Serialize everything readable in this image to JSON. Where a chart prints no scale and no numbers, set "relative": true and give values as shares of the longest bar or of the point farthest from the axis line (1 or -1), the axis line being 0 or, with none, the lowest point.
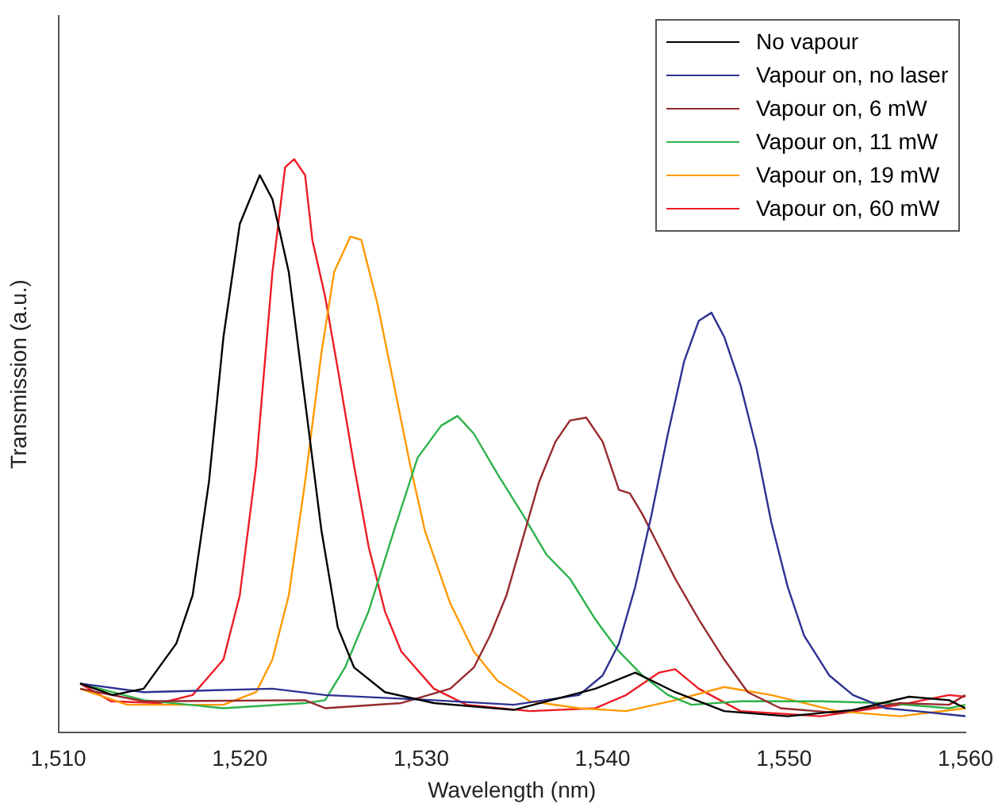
{
  "chart_data": {
    "type": "line",
    "xlabel": "Wavelength (nm)",
    "ylabel": "Transmission (a.u.)",
    "relative": true,
    "xlim": [
      1510,
      1560
    ],
    "xticks": [
      {
        "value": 1510,
        "label": "1,510"
      },
      {
        "value": 1520,
        "label": "1,520"
      },
      {
        "value": 1530,
        "label": "1,530"
      },
      {
        "value": 1540,
        "label": "1,540"
      },
      {
        "value": 1550,
        "label": "1,550"
      },
      {
        "value": 1560,
        "label": "1,560"
      }
    ],
    "grid": false,
    "legend": "top right",
    "marker": "none",
    "line_style": "solid",
    "series": [
      {
        "name": "No vapour",
        "color": "#000000",
        "x": [
          1511.2,
          1513,
          1514.7,
          1516.5,
          1517.4,
          1518.3,
          1519.1,
          1520,
          1521.1,
          1521.8,
          1522.7,
          1523.6,
          1524.5,
          1525.4,
          1526.3,
          1528,
          1530.7,
          1535.1,
          1539.6,
          1541.8,
          1544,
          1546.7,
          1550.2,
          1553.8,
          1556.9,
          1559.1,
          1560
        ],
        "values": [
          0.085,
          0.065,
          0.076,
          0.155,
          0.239,
          0.437,
          0.69,
          0.887,
          0.972,
          0.93,
          0.803,
          0.577,
          0.352,
          0.183,
          0.113,
          0.07,
          0.051,
          0.039,
          0.076,
          0.104,
          0.07,
          0.037,
          0.028,
          0.039,
          0.062,
          0.056,
          0.042
        ]
      },
      {
        "name": "Vapour on, no laser",
        "color": "#2e3192",
        "x": [
          1511.2,
          1514.7,
          1521.8,
          1524.7,
          1530.7,
          1535.1,
          1538.7,
          1540,
          1540.9,
          1541.8,
          1542.7,
          1543.6,
          1544.5,
          1545.3,
          1546,
          1546.7,
          1547.6,
          1548.5,
          1549.3,
          1550.2,
          1551.1,
          1552.5,
          1553.8,
          1555.6,
          1557.3,
          1560
        ],
        "values": [
          0.085,
          0.07,
          0.076,
          0.065,
          0.056,
          0.048,
          0.065,
          0.099,
          0.155,
          0.254,
          0.38,
          0.521,
          0.648,
          0.718,
          0.732,
          0.69,
          0.606,
          0.493,
          0.366,
          0.254,
          0.169,
          0.099,
          0.065,
          0.042,
          0.037,
          0.028
        ]
      },
      {
        "name": "Vapour on, 6 mW",
        "color": "#962a2e",
        "x": [
          1511.2,
          1514.7,
          1523.6,
          1524.7,
          1528.9,
          1531.6,
          1532.9,
          1533.8,
          1534.7,
          1535.6,
          1536.5,
          1537.4,
          1538.2,
          1539.1,
          1540,
          1540.9,
          1541.5,
          1542.2,
          1543.1,
          1544,
          1545.3,
          1546.7,
          1548,
          1549.8,
          1552.9,
          1556.4,
          1559.1,
          1560
        ],
        "values": [
          0.076,
          0.054,
          0.056,
          0.042,
          0.051,
          0.076,
          0.113,
          0.169,
          0.239,
          0.338,
          0.437,
          0.507,
          0.544,
          0.549,
          0.507,
          0.423,
          0.417,
          0.38,
          0.324,
          0.268,
          0.197,
          0.127,
          0.07,
          0.042,
          0.034,
          0.051,
          0.048,
          0.065
        ]
      },
      {
        "name": "Vapour on, 11 mW",
        "color": "#2db24a",
        "x": [
          1511.2,
          1514.7,
          1519.1,
          1523.6,
          1524.7,
          1525.8,
          1527.1,
          1528.5,
          1529.8,
          1531.1,
          1532,
          1532.9,
          1534.2,
          1535.6,
          1536.9,
          1538.2,
          1539.6,
          1540.9,
          1542.2,
          1543.6,
          1544.9,
          1547.6,
          1552,
          1555.6,
          1559.1,
          1560
        ],
        "values": [
          0.085,
          0.056,
          0.042,
          0.051,
          0.056,
          0.113,
          0.211,
          0.352,
          0.479,
          0.535,
          0.552,
          0.521,
          0.451,
          0.38,
          0.31,
          0.268,
          0.197,
          0.141,
          0.099,
          0.065,
          0.048,
          0.054,
          0.054,
          0.051,
          0.042,
          0.048
        ]
      },
      {
        "name": "Vapour on, 19 mW",
        "color": "#ff9900",
        "x": [
          1511.2,
          1513.8,
          1519.1,
          1520.9,
          1521.8,
          1522.7,
          1523.6,
          1524.5,
          1525.2,
          1526.1,
          1526.7,
          1527.6,
          1528.5,
          1529.4,
          1530.2,
          1531.6,
          1532.9,
          1534.2,
          1536,
          1538.7,
          1541.3,
          1544,
          1546.7,
          1549.3,
          1552.9,
          1556.4,
          1560
        ],
        "values": [
          0.076,
          0.048,
          0.048,
          0.07,
          0.127,
          0.239,
          0.437,
          0.662,
          0.803,
          0.865,
          0.859,
          0.746,
          0.606,
          0.465,
          0.352,
          0.225,
          0.141,
          0.09,
          0.054,
          0.042,
          0.037,
          0.056,
          0.079,
          0.065,
          0.037,
          0.028,
          0.042
        ]
      },
      {
        "name": "Vapour on, 60 mW",
        "color": "#ed1c24",
        "x": [
          1511.2,
          1512.9,
          1515.6,
          1517.4,
          1519.1,
          1520,
          1520.9,
          1521.8,
          1522.5,
          1523,
          1523.6,
          1524,
          1524.7,
          1525.4,
          1526.3,
          1527.1,
          1528,
          1528.9,
          1530.7,
          1532.5,
          1536,
          1539.6,
          1541.3,
          1543.1,
          1544,
          1545.3,
          1547.6,
          1552,
          1556.4,
          1559.1,
          1560
        ],
        "values": [
          0.085,
          0.054,
          0.051,
          0.065,
          0.127,
          0.239,
          0.465,
          0.803,
          0.986,
          1,
          0.972,
          0.859,
          0.761,
          0.634,
          0.465,
          0.324,
          0.211,
          0.141,
          0.076,
          0.048,
          0.037,
          0.042,
          0.065,
          0.104,
          0.11,
          0.076,
          0.037,
          0.028,
          0.048,
          0.065,
          0.062
        ]
      }
    ]
  }
}
